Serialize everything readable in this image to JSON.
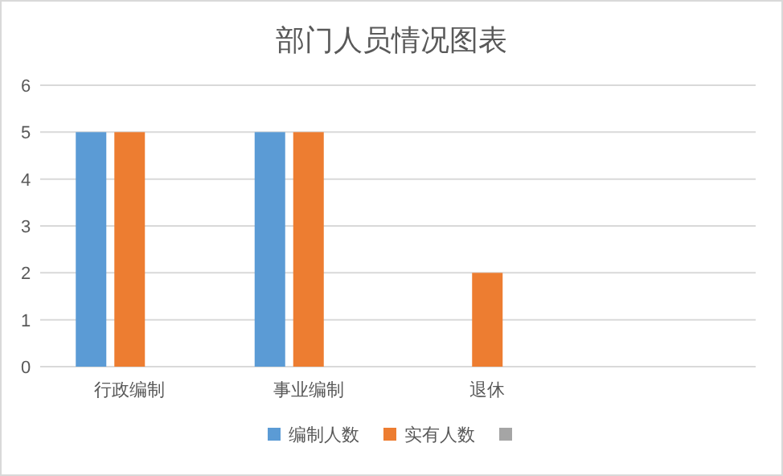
{
  "chart_data": {
    "type": "bar",
    "title": "部门人员情况图表",
    "categories": [
      "行政编制",
      "事业编制",
      "退休",
      null
    ],
    "series": [
      {
        "name": "编制人数",
        "color": "#5b9bd5",
        "values": [
          5,
          5,
          null,
          null
        ]
      },
      {
        "name": "实有人数",
        "color": "#ed7d31",
        "values": [
          5,
          5,
          2,
          null
        ]
      },
      {
        "color": "#a5a5a5",
        "values": [
          null,
          null,
          null,
          null
        ]
      }
    ],
    "ylim": [
      0,
      6
    ],
    "yticks": [
      0,
      1,
      2,
      3,
      4,
      5,
      6
    ],
    "grid": "y",
    "legend": "bottom"
  }
}
